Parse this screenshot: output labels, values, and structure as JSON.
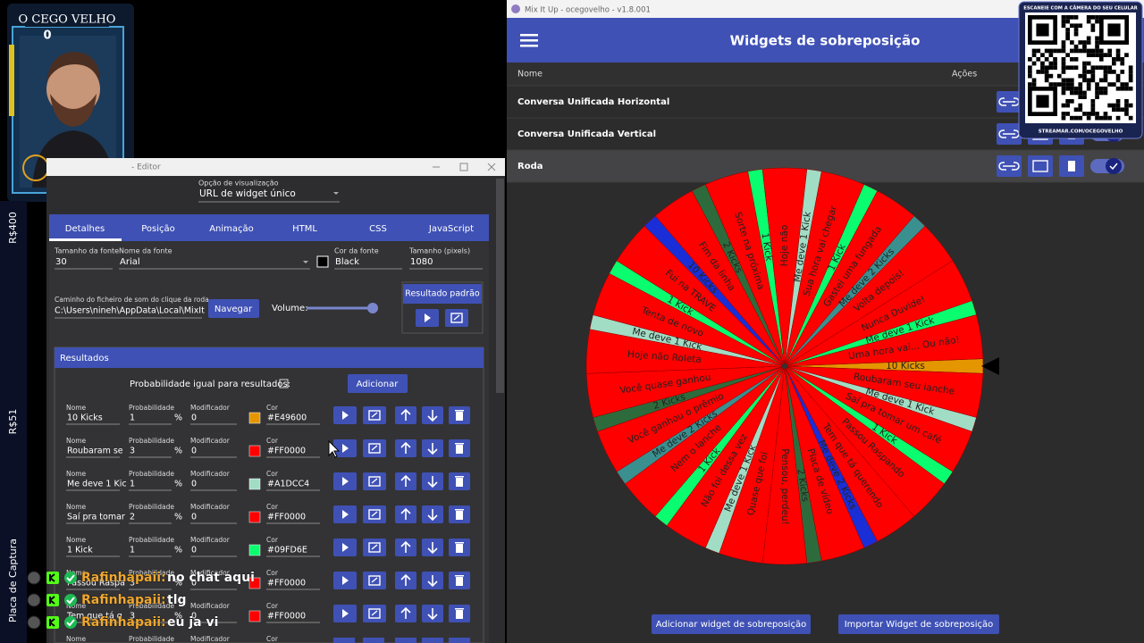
{
  "overlay": {
    "streamer": "O CEGO VELHO",
    "counter": "0"
  },
  "sidebar": {
    "top": "R$400",
    "middle": "R$51",
    "bottom": "Placa de Captura"
  },
  "editor": {
    "title": "- Editor",
    "view_option_label": "Opção de visualização",
    "view_option_value": "URL de widget único",
    "tabs": [
      "Detalhes",
      "Posição",
      "Animação",
      "HTML",
      "CSS",
      "JavaScript"
    ],
    "font_size_label": "Tamanho da fonte",
    "font_size": 30,
    "font_name_label": "Nome da fonte",
    "font_name": "Arial",
    "font_color_label": "Cor da fonte",
    "font_color": "Black",
    "size_label": "Tamanho (pixels)",
    "size": 1080,
    "sound_path_label": "Caminho do ficheiro de som do clique da roda",
    "sound_path": "C:\\Users\\nineh\\AppData\\Local\\MixIt",
    "browse": "Navegar",
    "volume": "Volume:",
    "default_result": "Resultado padrão",
    "results": {
      "title": "Resultados",
      "equal_probability": "Probabilidade igual para resultados:",
      "add": "Adicionar",
      "labels": {
        "name": "Nome",
        "probability": "Probabilidade",
        "percent": "%",
        "modifier": "Modificador",
        "color": "Cor"
      },
      "rows": [
        {
          "name": "10 Kicks",
          "probability": 1,
          "modifier": 0,
          "color": "#E49600"
        },
        {
          "name": "Roubaram se",
          "probability": 3,
          "modifier": 0,
          "color": "#FF0000"
        },
        {
          "name": "Me deve 1 Kic",
          "probability": 1,
          "modifier": 0,
          "color": "#A1DCC4"
        },
        {
          "name": "Saí pra tomar",
          "probability": 2,
          "modifier": 0,
          "color": "#FF0000"
        },
        {
          "name": "1 Kick",
          "probability": 1,
          "modifier": 0,
          "color": "#09FD6E"
        },
        {
          "name": "Passou Raspa",
          "probability": 3,
          "modifier": 0,
          "color": "#FF0000"
        },
        {
          "name": "Tem que tá q",
          "probability": 3,
          "modifier": 0,
          "color": "#FF0000"
        }
      ]
    }
  },
  "chat": [
    {
      "user": "Rafinhapaii:",
      "message": "no chat aqui"
    },
    {
      "user": "Rafinhapaii:",
      "message": "tlg"
    },
    {
      "user": "Rafinhapaii:",
      "message": "eu ja vi"
    }
  ],
  "app": {
    "window_title": "Mix It Up - ocegovelho - v1.8.001",
    "header": "Widgets de sobreposição",
    "columns": [
      "Nome",
      "Ações"
    ],
    "widgets": [
      "Conversa Unificada Horizontal",
      "Conversa Unificada Vertical",
      "Roda"
    ],
    "add_widget": "Adicionar widget de sobreposição",
    "import_widget": "Importar Widget de sobreposição"
  },
  "qr": {
    "caption_top": "ESCANEIE COM A CÂMERA DO SEU CELULAR",
    "caption_bottom": "STREAMAR.COM/OCEGOVELHO"
  },
  "wheel": [
    {
      "label": "10 Kicks",
      "color": "#E49600"
    },
    {
      "label": "Roubaram seu lanche",
      "color": "#FF0000"
    },
    {
      "label": "Me deve 1 Kick",
      "color": "#A1DCC4"
    },
    {
      "label": "Saí pra tomar um café",
      "color": "#FF0000"
    },
    {
      "label": "1 Kick",
      "color": "#09FD6E"
    },
    {
      "label": "Passou Raspando",
      "color": "#FF0000"
    },
    {
      "label": "Tem que tá querendo",
      "color": "#FF0000"
    },
    {
      "label": "Me deve 2 Kicks",
      "color": "#1A2ED8"
    },
    {
      "label": "Placa de vídeo",
      "color": "#FF0000"
    },
    {
      "label": "2 Kicks",
      "color": "#2E6B3C"
    },
    {
      "label": "Pensou, perdeu!",
      "color": "#FF0000"
    },
    {
      "label": "Quase que foi",
      "color": "#FF0000"
    },
    {
      "label": "Me deve 1 Kick",
      "color": "#A1DCC4"
    },
    {
      "label": "Não foi dessa vez",
      "color": "#FF0000"
    },
    {
      "label": "1 Kick",
      "color": "#09FD6E"
    },
    {
      "label": "Nem o lanche",
      "color": "#FF0000"
    },
    {
      "label": "Me deve 2 Kicks",
      "color": "#3A8F8F"
    },
    {
      "label": "Você ganhou o prêmio",
      "color": "#FF0000"
    },
    {
      "label": "2 Kicks",
      "color": "#2E6B3C"
    },
    {
      "label": "Você quase ganhou",
      "color": "#FF0000"
    },
    {
      "label": "Hoje não Roleta",
      "color": "#FF0000"
    },
    {
      "label": "Me deve 1 Kick",
      "color": "#A1DCC4"
    },
    {
      "label": "Tenta de novo",
      "color": "#FF0000"
    },
    {
      "label": "1 Kick",
      "color": "#09FD6E"
    },
    {
      "label": "Fui na TRAVE",
      "color": "#FF0000"
    },
    {
      "label": "10 Kicks",
      "color": "#1A2ED8"
    },
    {
      "label": "Fim da linha",
      "color": "#FF0000"
    },
    {
      "label": "2 Kicks",
      "color": "#2E6B3C"
    },
    {
      "label": "Sorte na próxima",
      "color": "#FF0000"
    },
    {
      "label": "1 Kick",
      "color": "#09FD6E"
    },
    {
      "label": "Hoje não",
      "color": "#FF0000"
    },
    {
      "label": "Me deve 1 Kick",
      "color": "#A1DCC4"
    },
    {
      "label": "Sua hora vai chegar",
      "color": "#FF0000"
    },
    {
      "label": "1 Kick",
      "color": "#09FD6E"
    },
    {
      "label": "Gastei uma fungada",
      "color": "#FF0000"
    },
    {
      "label": "Me deve 2 Kicks",
      "color": "#3A8F8F"
    },
    {
      "label": "Volta depois!",
      "color": "#FF0000"
    },
    {
      "label": "Nunca Duvide!",
      "color": "#FF0000"
    },
    {
      "label": "Me deve 1 Kick",
      "color": "#09FD6E"
    },
    {
      "label": "Uma hora vai... Ou não!",
      "color": "#FF0000"
    }
  ]
}
